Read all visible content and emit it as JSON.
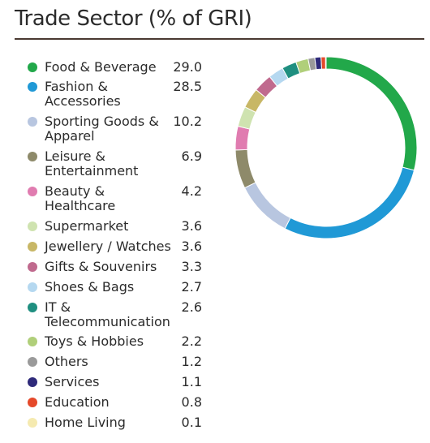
{
  "chart_data": {
    "type": "pie",
    "title": "Trade Sector (% of GRI)",
    "donut": true,
    "legend_position": "left",
    "slices": [
      {
        "label": "Food & Beverage",
        "value": "29.0",
        "color": "#22a84a"
      },
      {
        "label": "Fashion & Accessories",
        "value": "28.5",
        "color": "#2099d6"
      },
      {
        "label": "Sporting Goods & Apparel",
        "value": "10.2",
        "color": "#b8c6e0"
      },
      {
        "label": "Leisure & Entertainment",
        "value": "6.9",
        "color": "#8e8a6a"
      },
      {
        "label": "Beauty & Healthcare",
        "value": "4.2",
        "color": "#e07cb0"
      },
      {
        "label": "Supermarket",
        "value": "3.6",
        "color": "#cfe3b0"
      },
      {
        "label": "Jewellery / Watches",
        "value": "3.6",
        "color": "#c8b766"
      },
      {
        "label": "Gifts & Souvenirs",
        "value": "3.3",
        "color": "#c06a8e"
      },
      {
        "label": "Shoes & Bags",
        "value": "2.7",
        "color": "#b5d8f0"
      },
      {
        "label": "IT & Telecommunication",
        "value": "2.6",
        "color": "#1f8f80"
      },
      {
        "label": "Toys & Hobbies",
        "value": "2.2",
        "color": "#b0cf7a"
      },
      {
        "label": "Others",
        "value": "1.2",
        "color": "#9a9a9a"
      },
      {
        "label": "Services",
        "value": "1.1",
        "color": "#2e2a7a"
      },
      {
        "label": "Education",
        "value": "0.8",
        "color": "#e5492a"
      },
      {
        "label": "Home Living",
        "value": "0.1",
        "color": "#f5eab0"
      }
    ]
  }
}
